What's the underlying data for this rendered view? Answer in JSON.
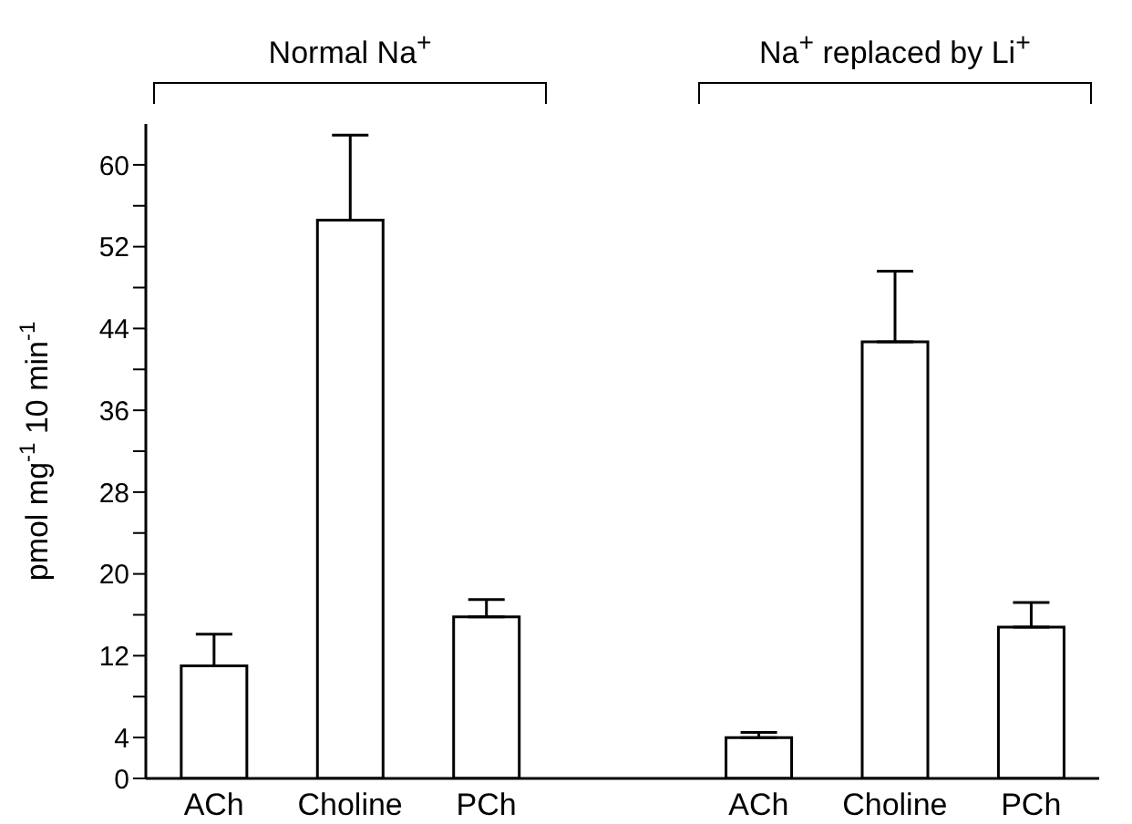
{
  "chart_data": {
    "type": "bar",
    "ylabel": "pmol mg$^{-1}$ 10 min$^{-1}$",
    "categories": [
      "ACh",
      "Choline",
      "PCh",
      "ACh",
      "Choline",
      "PCh"
    ],
    "values": [
      11.0,
      54.6,
      15.8,
      4.0,
      42.7,
      14.8
    ],
    "errors": [
      [
        11.0,
        14.1
      ],
      [
        54.6,
        62.9
      ],
      [
        15.8,
        17.5
      ],
      [
        4.0,
        4.5
      ],
      [
        42.7,
        49.6
      ],
      [
        14.8,
        17.2
      ]
    ],
    "color": "#ffffff",
    "ylim": [
      0,
      64
    ],
    "yticks": [
      0,
      4,
      {
        "value": 8,
        "label": null
      },
      12,
      {
        "value": 16,
        "label": null
      },
      20,
      {
        "value": 24,
        "label": null
      },
      28,
      {
        "value": 32,
        "label": null
      },
      36,
      {
        "value": 40,
        "label": null
      },
      44,
      {
        "value": 48,
        "label": null
      },
      52,
      {
        "value": 56,
        "label": null
      },
      60
    ],
    "annotations": [
      "Normal Na$^{+}$",
      "Na$^{+}$ replaced by Li$^{+}$"
    ]
  }
}
